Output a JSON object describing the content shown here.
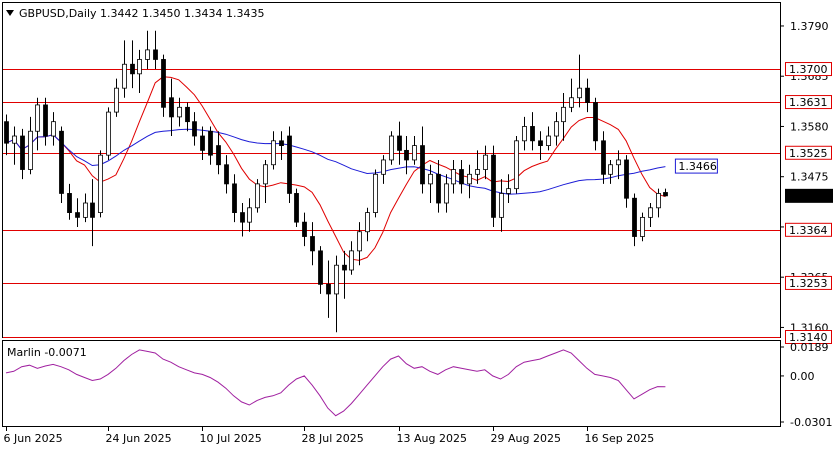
{
  "header": {
    "symbol_text": "GBPUSD,Daily  1.3442 1.3450 1.3434 1.3435",
    "dropdown_icon": "triangle-down-icon"
  },
  "indicator": {
    "label": "Marlin -0.0071"
  },
  "colors": {
    "background": "#ffffff",
    "frame": "#000000",
    "bull": "#ffffff",
    "bear": "#000000",
    "level_line": "#e00000",
    "ma_fast": "#e00000",
    "ma_slow": "#1c1cd6",
    "oscillator": "#a020a0",
    "ma_slow_tag_border": "#1c1cd6",
    "current_price_tag": "#000000"
  },
  "chart_data": [
    {
      "type": "candlestick",
      "title": "GBPUSD,Daily",
      "ylim": [
        1.314,
        1.3838
      ],
      "y_ticks": [
        "1.3790",
        "1.3685",
        "1.3580",
        "1.3475",
        "1.3370",
        "1.3265",
        "1.3160"
      ],
      "x_tick_labels": [
        "6 Jun 2025",
        "24 Jun 2025",
        "10 Jul 2025",
        "28 Jul 2025",
        "13 Aug 2025",
        "29 Aug 2025",
        "16 Sep 2025"
      ],
      "x_tick_index": [
        0,
        13,
        25,
        38,
        50,
        62,
        74
      ],
      "grid": false,
      "ohlc": [
        [
          1.359,
          1.3605,
          1.352,
          1.3545
        ],
        [
          1.3545,
          1.358,
          1.35,
          1.356
        ],
        [
          1.356,
          1.3575,
          1.347,
          1.349
        ],
        [
          1.349,
          1.36,
          1.348,
          1.357
        ],
        [
          1.357,
          1.364,
          1.353,
          1.3625
        ],
        [
          1.3625,
          1.364,
          1.354,
          1.356
        ],
        [
          1.356,
          1.361,
          1.354,
          1.359
        ],
        [
          1.357,
          1.358,
          1.342,
          1.344
        ],
        [
          1.344,
          1.346,
          1.3385,
          1.34
        ],
        [
          1.34,
          1.343,
          1.337,
          1.339
        ],
        [
          1.339,
          1.344,
          1.338,
          1.342
        ],
        [
          1.342,
          1.347,
          1.333,
          1.339
        ],
        [
          1.34,
          1.353,
          1.339,
          1.352
        ],
        [
          1.352,
          1.362,
          1.351,
          1.361
        ],
        [
          1.361,
          1.368,
          1.36,
          1.366
        ],
        [
          1.366,
          1.376,
          1.364,
          1.371
        ],
        [
          1.371,
          1.376,
          1.366,
          1.369
        ],
        [
          1.369,
          1.374,
          1.365,
          1.372
        ],
        [
          1.372,
          1.378,
          1.37,
          1.374
        ],
        [
          1.374,
          1.378,
          1.37,
          1.372
        ],
        [
          1.372,
          1.373,
          1.36,
          1.362
        ],
        [
          1.364,
          1.368,
          1.356,
          1.36
        ],
        [
          1.36,
          1.364,
          1.358,
          1.362
        ],
        [
          1.362,
          1.363,
          1.357,
          1.359
        ],
        [
          1.359,
          1.361,
          1.354,
          1.356
        ],
        [
          1.356,
          1.358,
          1.351,
          1.353
        ],
        [
          1.357,
          1.358,
          1.35,
          1.352
        ],
        [
          1.354,
          1.357,
          1.348,
          1.35
        ],
        [
          1.35,
          1.352,
          1.344,
          1.346
        ],
        [
          1.346,
          1.348,
          1.338,
          1.34
        ],
        [
          1.34,
          1.342,
          1.335,
          1.338
        ],
        [
          1.338,
          1.343,
          1.336,
          1.341
        ],
        [
          1.341,
          1.347,
          1.34,
          1.346
        ],
        [
          1.346,
          1.351,
          1.342,
          1.35
        ],
        [
          1.35,
          1.357,
          1.349,
          1.355
        ],
        [
          1.355,
          1.357,
          1.351,
          1.354
        ],
        [
          1.356,
          1.358,
          1.342,
          1.344
        ],
        [
          1.344,
          1.345,
          1.337,
          1.338
        ],
        [
          1.338,
          1.34,
          1.333,
          1.335
        ],
        [
          1.335,
          1.338,
          1.329,
          1.332
        ],
        [
          1.332,
          1.333,
          1.323,
          1.325
        ],
        [
          1.325,
          1.33,
          1.318,
          1.323
        ],
        [
          1.323,
          1.331,
          1.315,
          1.329
        ],
        [
          1.329,
          1.332,
          1.322,
          1.328
        ],
        [
          1.328,
          1.334,
          1.327,
          1.332
        ],
        [
          1.332,
          1.338,
          1.329,
          1.336
        ],
        [
          1.336,
          1.341,
          1.334,
          1.34
        ],
        [
          1.34,
          1.349,
          1.339,
          1.348
        ],
        [
          1.348,
          1.352,
          1.346,
          1.351
        ],
        [
          1.351,
          1.357,
          1.35,
          1.356
        ],
        [
          1.356,
          1.359,
          1.35,
          1.353
        ],
        [
          1.353,
          1.356,
          1.348,
          1.351
        ],
        [
          1.351,
          1.356,
          1.35,
          1.354
        ],
        [
          1.354,
          1.358,
          1.344,
          1.346
        ],
        [
          1.346,
          1.35,
          1.342,
          1.348
        ],
        [
          1.348,
          1.351,
          1.34,
          1.342
        ],
        [
          1.342,
          1.348,
          1.34,
          1.346
        ],
        [
          1.346,
          1.351,
          1.344,
          1.349
        ],
        [
          1.349,
          1.351,
          1.344,
          1.346
        ],
        [
          1.346,
          1.35,
          1.343,
          1.348
        ],
        [
          1.348,
          1.353,
          1.346,
          1.349
        ],
        [
          1.349,
          1.354,
          1.347,
          1.352
        ],
        [
          1.352,
          1.354,
          1.337,
          1.339
        ],
        [
          1.339,
          1.347,
          1.336,
          1.344
        ],
        [
          1.344,
          1.348,
          1.342,
          1.345
        ],
        [
          1.345,
          1.356,
          1.344,
          1.355
        ],
        [
          1.355,
          1.36,
          1.353,
          1.358
        ],
        [
          1.358,
          1.361,
          1.353,
          1.355
        ],
        [
          1.355,
          1.357,
          1.351,
          1.354
        ],
        [
          1.354,
          1.358,
          1.353,
          1.356
        ],
        [
          1.356,
          1.361,
          1.354,
          1.359
        ],
        [
          1.359,
          1.365,
          1.355,
          1.362
        ],
        [
          1.362,
          1.368,
          1.361,
          1.364
        ],
        [
          1.364,
          1.373,
          1.362,
          1.366
        ],
        [
          1.366,
          1.368,
          1.361,
          1.363
        ],
        [
          1.363,
          1.364,
          1.353,
          1.355
        ],
        [
          1.355,
          1.357,
          1.346,
          1.348
        ],
        [
          1.348,
          1.351,
          1.346,
          1.35
        ],
        [
          1.35,
          1.353,
          1.347,
          1.351
        ],
        [
          1.351,
          1.352,
          1.341,
          1.343
        ],
        [
          1.343,
          1.344,
          1.333,
          1.335
        ],
        [
          1.335,
          1.34,
          1.334,
          1.339
        ],
        [
          1.339,
          1.342,
          1.337,
          1.341
        ],
        [
          1.341,
          1.345,
          1.339,
          1.344
        ],
        [
          1.3442,
          1.345,
          1.3434,
          1.3435
        ]
      ],
      "horizontal_levels": [
        {
          "value": 1.37,
          "label": "1.3700"
        },
        {
          "value": 1.3631,
          "label": "1.3631"
        },
        {
          "value": 1.3525,
          "label": "1.3525"
        },
        {
          "value": 1.3364,
          "label": "1.3364"
        },
        {
          "value": 1.3253,
          "label": "1.3253"
        },
        {
          "value": 1.314,
          "label": "1.3140"
        }
      ],
      "moving_averages": [
        {
          "color_key": "ma_fast",
          "period": 8
        },
        {
          "color_key": "ma_slow",
          "period": 40,
          "last_value_tag": "1.3466"
        }
      ],
      "current_price_tag": "1.3435"
    },
    {
      "type": "line",
      "title": "Marlin -0.0071",
      "ylim": [
        -0.0301,
        0.0189
      ],
      "y_ticks": [
        "0.0189",
        "0.00",
        "-0.0301"
      ],
      "values": [
        0.002,
        0.003,
        0.006,
        0.007,
        0.005,
        0.0065,
        0.0075,
        0.006,
        0.004,
        0.001,
        -0.001,
        -0.003,
        -0.002,
        0.001,
        0.005,
        0.01,
        0.014,
        0.017,
        0.016,
        0.015,
        0.011,
        0.009,
        0.006,
        0.004,
        0.002,
        0.001,
        -0.001,
        -0.004,
        -0.008,
        -0.013,
        -0.017,
        -0.019,
        -0.016,
        -0.014,
        -0.013,
        -0.011,
        -0.006,
        -0.002,
        0.0,
        -0.006,
        -0.013,
        -0.021,
        -0.026,
        -0.023,
        -0.018,
        -0.012,
        -0.006,
        0.0,
        0.006,
        0.011,
        0.013,
        0.008,
        0.005,
        0.006,
        0.003,
        0.001,
        0.004,
        0.006,
        0.005,
        0.004,
        0.003,
        0.004,
        0.0,
        -0.002,
        0.001,
        0.006,
        0.009,
        0.01,
        0.011,
        0.013,
        0.015,
        0.017,
        0.015,
        0.01,
        0.005,
        0.001,
        0.0,
        -0.001,
        -0.003,
        -0.009,
        -0.015,
        -0.012,
        -0.009,
        -0.007,
        -0.0071
      ]
    }
  ]
}
